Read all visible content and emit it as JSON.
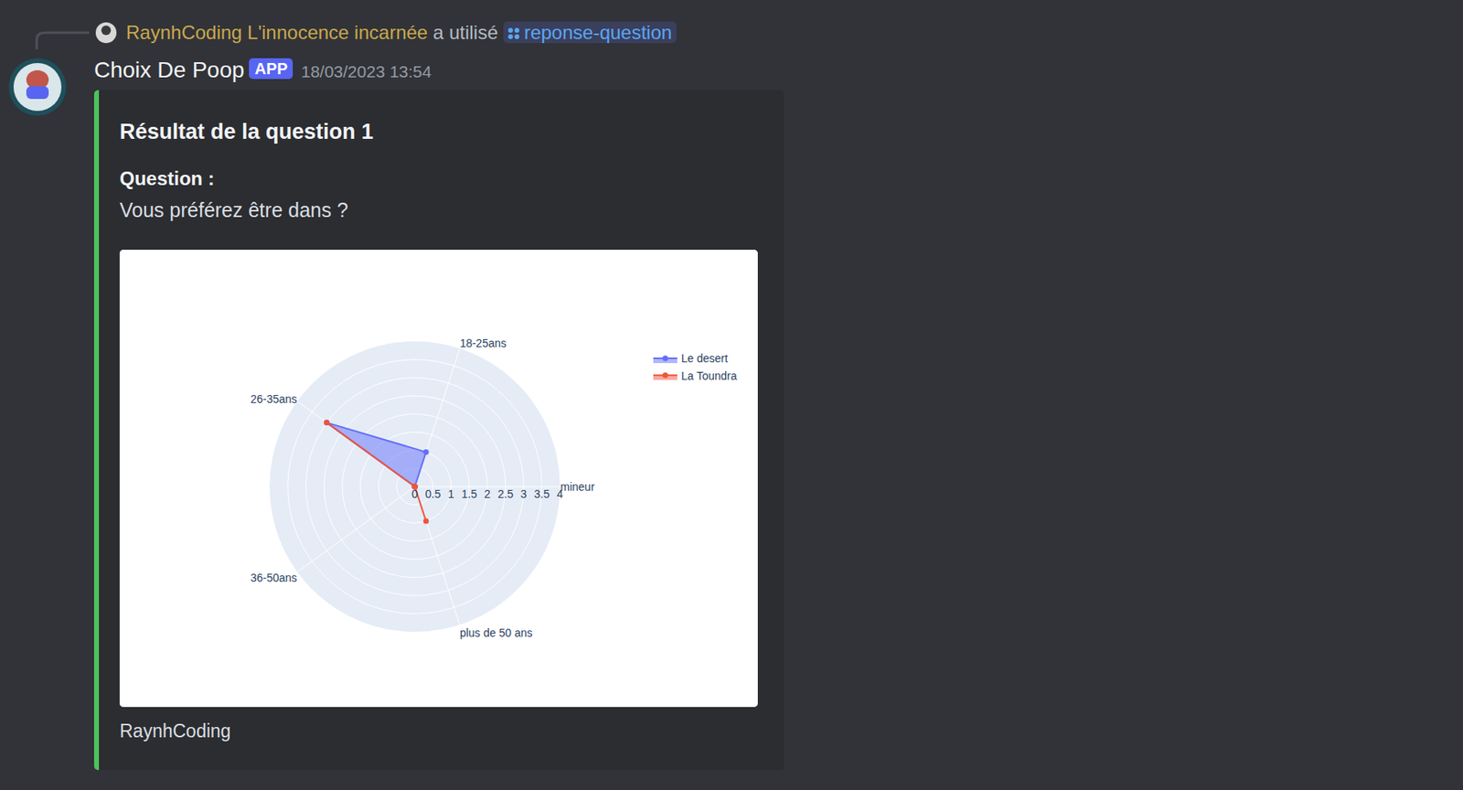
{
  "header": {
    "user": "RaynhCoding L'innocence incarnée",
    "action": "a utilisé",
    "command": "reponse-question"
  },
  "message": {
    "author": "Choix De Poop",
    "badge": "APP",
    "timestamp": "18/03/2023 13:54"
  },
  "embed": {
    "title": "Résultat de la question 1",
    "field_name": "Question :",
    "field_value": "Vous préférez être dans ?",
    "footer": "RaynhCoding"
  },
  "chart_data": {
    "type": "radar",
    "categories": [
      "mineur",
      "18-25ans",
      "26-35ans",
      "36-50ans",
      "plus de 50 ans"
    ],
    "series": [
      {
        "name": "Le desert",
        "color": "#636efa",
        "values": [
          0,
          1,
          3,
          0,
          0
        ]
      },
      {
        "name": "La Toundra",
        "color": "#ef553b",
        "values": [
          0,
          0,
          3,
          0,
          1
        ]
      }
    ],
    "ylim": [
      0,
      4
    ],
    "yticks": [
      0,
      0.5,
      1,
      1.5,
      2,
      2.5,
      3,
      3.5,
      4
    ],
    "grid": true,
    "legend": "top right",
    "marker": "circle"
  }
}
